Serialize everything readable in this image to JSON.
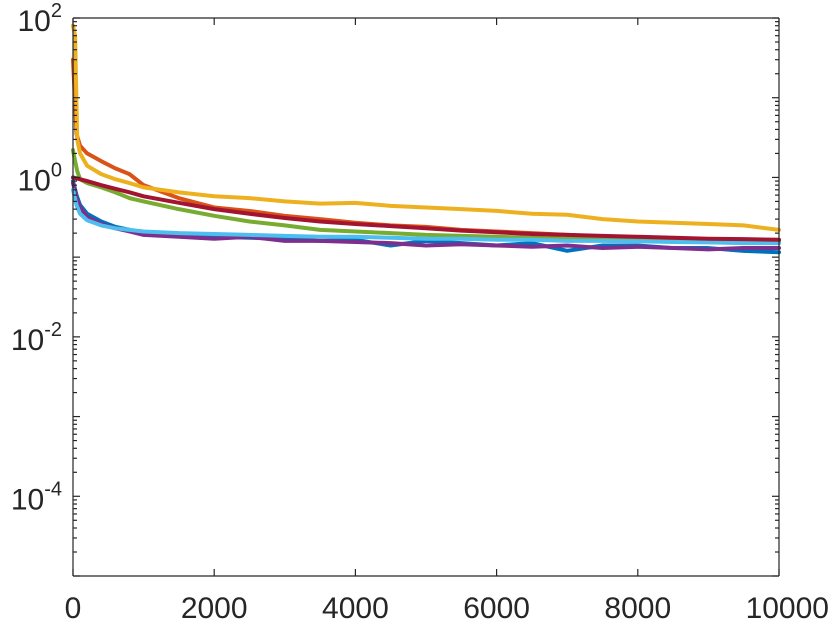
{
  "chart_data": {
    "type": "line",
    "title": "",
    "xlabel": "",
    "ylabel": "",
    "xlim": [
      0,
      10000
    ],
    "ylim": [
      1e-05,
      100
    ],
    "yscale": "log",
    "grid": false,
    "x_ticks": [
      0,
      2000,
      4000,
      6000,
      8000,
      10000
    ],
    "x_tick_labels": [
      "0",
      "2000",
      "4000",
      "6000",
      "8000",
      "10000"
    ],
    "y_ticks": [
      {
        "value": 100,
        "base": "10",
        "exp": "2"
      },
      {
        "value": 1,
        "base": "10",
        "exp": "0"
      },
      {
        "value": 0.01,
        "base": "10",
        "exp": "-2"
      },
      {
        "value": 0.0001,
        "base": "10",
        "exp": "-4"
      }
    ],
    "series": [
      {
        "color": "#0072BD",
        "x": [
          0,
          50,
          100,
          200,
          400,
          600,
          800,
          1000,
          1500,
          2000,
          2500,
          3000,
          3500,
          4000,
          4500,
          5000,
          5500,
          6000,
          6500,
          7000,
          7500,
          8000,
          8500,
          9000,
          9500,
          10000
        ],
        "y": [
          0.9,
          0.6,
          0.45,
          0.35,
          0.28,
          0.24,
          0.22,
          0.2,
          0.19,
          0.18,
          0.175,
          0.17,
          0.16,
          0.165,
          0.14,
          0.16,
          0.15,
          0.14,
          0.15,
          0.12,
          0.14,
          0.14,
          0.13,
          0.13,
          0.12,
          0.115
        ]
      },
      {
        "color": "#D95319",
        "x": [
          0,
          50,
          100,
          200,
          400,
          600,
          800,
          1000,
          1500,
          2000,
          2500,
          3000,
          3500,
          4000,
          4500,
          5000,
          5500,
          6000,
          6500,
          7000,
          7500,
          8000,
          8500,
          9000,
          9500,
          10000
        ],
        "y": [
          30,
          3.5,
          2.5,
          2.0,
          1.6,
          1.3,
          1.1,
          0.8,
          0.55,
          0.42,
          0.38,
          0.33,
          0.3,
          0.27,
          0.25,
          0.24,
          0.22,
          0.21,
          0.2,
          0.19,
          0.18,
          0.175,
          0.17,
          0.165,
          0.16,
          0.16
        ]
      },
      {
        "color": "#EDB120",
        "x": [
          0,
          30,
          60,
          100,
          200,
          400,
          600,
          800,
          1000,
          1500,
          2000,
          2500,
          3000,
          3500,
          4000,
          4500,
          5000,
          5500,
          6000,
          6500,
          7000,
          7500,
          8000,
          8500,
          9000,
          9500,
          10000
        ],
        "y": [
          80,
          60,
          3,
          2,
          1.4,
          1.1,
          0.95,
          0.85,
          0.75,
          0.65,
          0.58,
          0.55,
          0.5,
          0.47,
          0.48,
          0.44,
          0.42,
          0.4,
          0.38,
          0.35,
          0.34,
          0.3,
          0.28,
          0.27,
          0.26,
          0.25,
          0.22
        ]
      },
      {
        "color": "#7E2F8E",
        "x": [
          0,
          50,
          100,
          200,
          400,
          600,
          800,
          1000,
          1500,
          2000,
          2500,
          3000,
          3500,
          4000,
          4500,
          5000,
          5500,
          6000,
          6500,
          7000,
          7500,
          8000,
          8500,
          9000,
          9500,
          10000
        ],
        "y": [
          0.85,
          0.55,
          0.42,
          0.32,
          0.26,
          0.23,
          0.21,
          0.19,
          0.18,
          0.17,
          0.18,
          0.16,
          0.16,
          0.155,
          0.15,
          0.14,
          0.145,
          0.14,
          0.135,
          0.14,
          0.13,
          0.135,
          0.13,
          0.125,
          0.13,
          0.13
        ]
      },
      {
        "color": "#77AC30",
        "x": [
          0,
          30,
          60,
          100,
          200,
          400,
          600,
          800,
          1000,
          1500,
          2000,
          2500,
          3000,
          3500,
          4000,
          4500,
          5000,
          5500,
          6000,
          6500,
          7000,
          7500,
          8000,
          8500,
          9000,
          9500,
          10000
        ],
        "y": [
          2.2,
          1.6,
          1.2,
          0.95,
          0.85,
          0.75,
          0.65,
          0.55,
          0.5,
          0.4,
          0.33,
          0.28,
          0.25,
          0.22,
          0.21,
          0.2,
          0.19,
          0.185,
          0.18,
          0.175,
          0.17,
          0.17,
          0.165,
          0.16,
          0.16,
          0.155,
          0.155
        ]
      },
      {
        "color": "#4DBEEE",
        "x": [
          0,
          50,
          100,
          200,
          400,
          600,
          800,
          1000,
          1500,
          2000,
          2500,
          3000,
          3500,
          4000,
          4500,
          5000,
          5500,
          6000,
          6500,
          7000,
          7500,
          8000,
          8500,
          9000,
          9500,
          10000
        ],
        "y": [
          0.7,
          0.45,
          0.35,
          0.29,
          0.25,
          0.23,
          0.22,
          0.21,
          0.2,
          0.195,
          0.19,
          0.185,
          0.18,
          0.18,
          0.175,
          0.17,
          0.17,
          0.165,
          0.165,
          0.16,
          0.16,
          0.158,
          0.155,
          0.153,
          0.15,
          0.15
        ]
      },
      {
        "color": "#A2142F",
        "x": [
          0,
          200,
          400,
          600,
          800,
          1000,
          1500,
          2000,
          2500,
          3000,
          3500,
          4000,
          4500,
          5000,
          5500,
          6000,
          6500,
          7000,
          7500,
          8000,
          8500,
          9000,
          9500,
          10000
        ],
        "y": [
          1.0,
          0.9,
          0.8,
          0.72,
          0.65,
          0.58,
          0.48,
          0.4,
          0.35,
          0.31,
          0.28,
          0.26,
          0.245,
          0.23,
          0.215,
          0.205,
          0.195,
          0.19,
          0.185,
          0.18,
          0.175,
          0.17,
          0.168,
          0.165
        ]
      }
    ]
  }
}
